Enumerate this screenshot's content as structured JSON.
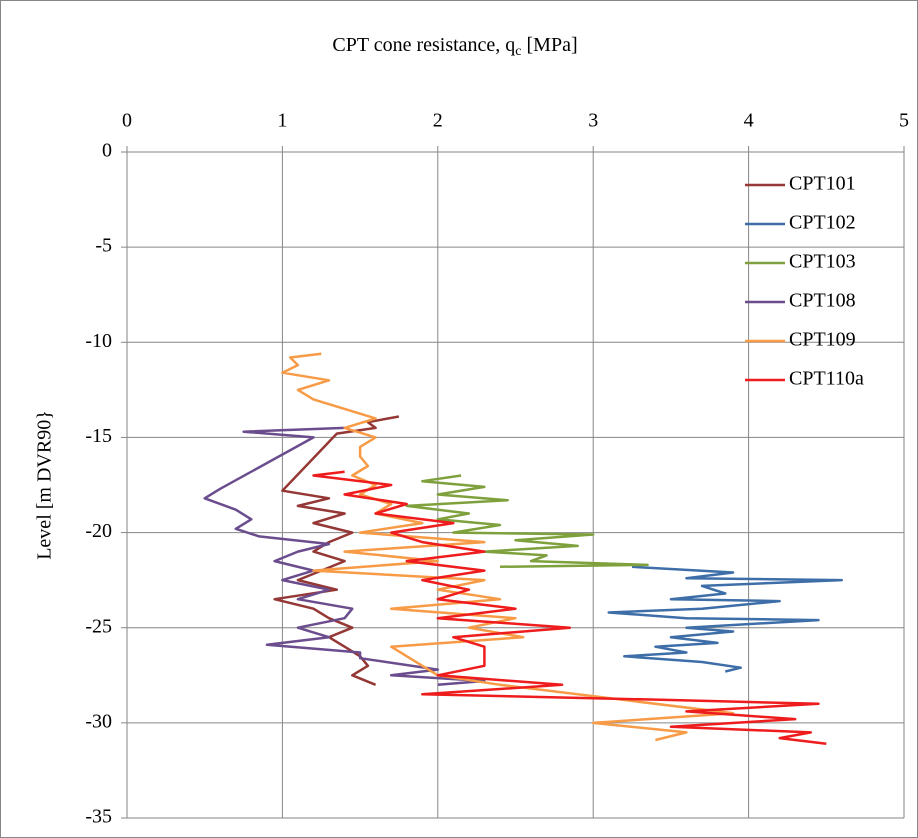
{
  "chart_data": {
    "type": "line",
    "title": "CPT cone resistance, q",
    "title_subscript": "c",
    "title_suffix": "[MPa]",
    "y_label": "Level  [m DVR90}",
    "xlim": [
      0,
      5
    ],
    "xticks": [
      0,
      1,
      2,
      3,
      4,
      5
    ],
    "ylim": [
      -35,
      0
    ],
    "yticks": [
      0,
      -5,
      -10,
      -15,
      -20,
      -25,
      -30,
      -35
    ],
    "grid": true,
    "legend": "upper right",
    "series": [
      {
        "name": "CPT101",
        "color": "#953735",
        "x": [
          1.75,
          1.55,
          1.6,
          1.35,
          1.0,
          1.3,
          1.1,
          1.4,
          1.2,
          1.45,
          1.3,
          1.2,
          1.4,
          1.25,
          1.1,
          1.35,
          0.95,
          1.2,
          1.3,
          1.45,
          1.3,
          1.4,
          1.5,
          1.55,
          1.45,
          1.6
        ],
        "values": [
          -13.9,
          -14.2,
          -14.5,
          -14.8,
          -17.8,
          -18.2,
          -18.6,
          -19.0,
          -19.5,
          -20.0,
          -20.5,
          -21.0,
          -21.5,
          -22.0,
          -22.5,
          -23.0,
          -23.5,
          -24.0,
          -24.5,
          -25.0,
          -25.5,
          -26.0,
          -26.5,
          -27.0,
          -27.5,
          -28.0
        ]
      },
      {
        "name": "CPT102",
        "color": "#3e6ea8",
        "x": [
          3.25,
          3.9,
          3.6,
          4.6,
          3.7,
          3.85,
          3.5,
          4.2,
          3.7,
          3.1,
          3.6,
          4.45,
          3.6,
          3.9,
          3.5,
          3.8,
          3.4,
          3.6,
          3.2,
          3.7,
          3.95,
          3.85
        ],
        "values": [
          -21.8,
          -22.1,
          -22.4,
          -22.5,
          -22.8,
          -23.2,
          -23.5,
          -23.6,
          -24.0,
          -24.2,
          -24.5,
          -24.6,
          -25.0,
          -25.2,
          -25.5,
          -25.8,
          -26.0,
          -26.3,
          -26.5,
          -26.8,
          -27.1,
          -27.3
        ]
      },
      {
        "name": "CPT103",
        "color": "#7fa13d",
        "x": [
          2.15,
          1.9,
          2.3,
          2.0,
          2.45,
          1.8,
          2.2,
          2.0,
          2.4,
          2.1,
          3.0,
          2.5,
          2.9,
          2.3,
          2.7,
          2.6,
          3.35,
          2.4
        ],
        "values": [
          -17.0,
          -17.3,
          -17.6,
          -18.0,
          -18.3,
          -18.6,
          -19.0,
          -19.3,
          -19.6,
          -20.0,
          -20.1,
          -20.4,
          -20.7,
          -21.0,
          -21.2,
          -21.5,
          -21.7,
          -21.8
        ]
      },
      {
        "name": "CPT108",
        "color": "#6b4d8e",
        "x": [
          1.4,
          0.75,
          1.2,
          0.6,
          0.5,
          0.7,
          0.8,
          0.7,
          0.85,
          1.3,
          1.1,
          0.95,
          1.2,
          1.0,
          1.3,
          1.1,
          1.45,
          1.4,
          1.1,
          1.3,
          0.9,
          1.5,
          1.5,
          2.0,
          1.7,
          2.3,
          2.0
        ],
        "values": [
          -14.5,
          -14.7,
          -15.0,
          -17.7,
          -18.2,
          -18.8,
          -19.3,
          -19.8,
          -20.2,
          -20.6,
          -21.0,
          -21.5,
          -22.0,
          -22.5,
          -23.0,
          -23.5,
          -24.0,
          -24.5,
          -25.0,
          -25.5,
          -25.9,
          -26.3,
          -26.6,
          -27.2,
          -27.5,
          -27.8,
          -28.0
        ]
      },
      {
        "name": "CPT109",
        "color": "#f79b46",
        "x": [
          1.25,
          1.05,
          1.1,
          1.0,
          1.3,
          1.1,
          1.2,
          1.4,
          1.6,
          1.4,
          1.6,
          1.5,
          1.5,
          1.55,
          1.45,
          1.6,
          1.5,
          1.7,
          1.6,
          1.9,
          1.5,
          2.3,
          1.4,
          2.0,
          1.2,
          2.3,
          2.0,
          2.4,
          1.7,
          2.5,
          2.2,
          2.55,
          1.7,
          2.0,
          2.4,
          3.9,
          3.0,
          3.6,
          3.4
        ],
        "values": [
          -10.6,
          -10.8,
          -11.2,
          -11.6,
          -12.0,
          -12.5,
          -13.0,
          -13.5,
          -14.0,
          -14.5,
          -15.0,
          -15.5,
          -16.0,
          -16.5,
          -17.0,
          -17.5,
          -18.0,
          -18.5,
          -19.0,
          -19.5,
          -20.0,
          -20.5,
          -21.0,
          -21.5,
          -22.0,
          -22.5,
          -23.0,
          -23.5,
          -24.0,
          -24.5,
          -25.0,
          -25.5,
          -26.0,
          -27.5,
          -28.0,
          -29.5,
          -30.0,
          -30.5,
          -30.9
        ]
      },
      {
        "name": "CPT110a",
        "color": "#ee1c1c",
        "x": [
          1.4,
          1.2,
          1.7,
          1.4,
          1.8,
          1.6,
          2.1,
          1.7,
          1.9,
          2.3,
          1.8,
          2.3,
          1.9,
          2.2,
          2.0,
          2.5,
          2.0,
          2.85,
          2.1,
          2.3,
          2.3,
          2.0,
          2.8,
          1.9,
          3.5,
          4.45,
          3.6,
          4.3,
          3.5,
          4.4,
          4.2,
          4.5
        ],
        "values": [
          -16.8,
          -17.0,
          -17.5,
          -18.0,
          -18.5,
          -19.0,
          -19.5,
          -20.0,
          -20.5,
          -21.0,
          -21.5,
          -22.0,
          -22.5,
          -23.0,
          -23.5,
          -24.0,
          -24.5,
          -25.0,
          -25.5,
          -26.0,
          -27.0,
          -27.5,
          -28.0,
          -28.5,
          -28.8,
          -29.0,
          -29.4,
          -29.8,
          -30.2,
          -30.5,
          -30.8,
          -31.1
        ]
      }
    ]
  }
}
